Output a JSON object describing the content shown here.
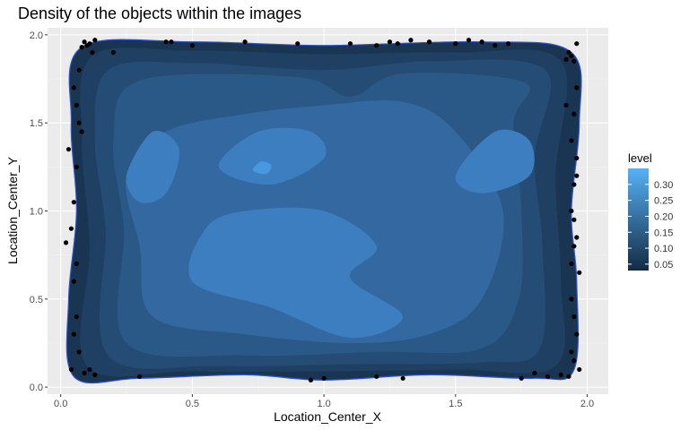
{
  "chart_data": {
    "type": "contour-density",
    "title": "Density of the objects within the images",
    "xlabel": "Location_Center_X",
    "ylabel": "Location_Center_Y",
    "xlim": [
      -0.05,
      2.08
    ],
    "ylim": [
      -0.04,
      2.04
    ],
    "x_ticks": [
      0.0,
      0.5,
      1.0,
      1.5,
      2.0
    ],
    "x_tick_labels": [
      "0.0",
      "0.5",
      "1.0",
      "1.5",
      "2.0"
    ],
    "y_ticks": [
      0.0,
      0.5,
      1.0,
      1.5,
      2.0
    ],
    "y_tick_labels": [
      "0.0",
      "0.5",
      "1.0",
      "1.5",
      "2.0"
    ],
    "grid": true,
    "legend": {
      "title": "level",
      "placement": "right",
      "levels": [
        0.05,
        0.1,
        0.15,
        0.2,
        0.25,
        0.3
      ],
      "labels": [
        "0.05",
        "0.10",
        "0.15",
        "0.20",
        "0.25",
        "0.30"
      ],
      "range": [
        0.03,
        0.35
      ],
      "color_low": "#132B43",
      "color_high": "#56B1F7"
    },
    "contour_levels": [
      {
        "level": 0.05,
        "color": "#1a3552",
        "points": [
          [
            0.05,
            0.06
          ],
          [
            0.3,
            0.05
          ],
          [
            0.7,
            0.07
          ],
          [
            1.0,
            0.04
          ],
          [
            1.4,
            0.07
          ],
          [
            1.8,
            0.05
          ],
          [
            1.95,
            0.1
          ],
          [
            1.96,
            0.6
          ],
          [
            1.94,
            1.0
          ],
          [
            1.97,
            1.5
          ],
          [
            1.94,
            1.9
          ],
          [
            1.6,
            1.96
          ],
          [
            1.0,
            1.94
          ],
          [
            0.5,
            1.96
          ],
          [
            0.08,
            1.93
          ],
          [
            0.04,
            1.5
          ],
          [
            0.06,
            1.0
          ],
          [
            0.03,
            0.5
          ]
        ]
      },
      {
        "level": 0.1,
        "color": "#1f4063",
        "points": [
          [
            0.1,
            0.12
          ],
          [
            0.5,
            0.09
          ],
          [
            1.0,
            0.09
          ],
          [
            1.5,
            0.1
          ],
          [
            1.88,
            0.12
          ],
          [
            1.9,
            0.6
          ],
          [
            1.88,
            1.2
          ],
          [
            1.9,
            1.85
          ],
          [
            1.5,
            1.9
          ],
          [
            1.0,
            1.89
          ],
          [
            0.5,
            1.91
          ],
          [
            0.12,
            1.88
          ],
          [
            0.08,
            1.4
          ],
          [
            0.11,
            0.8
          ]
        ]
      },
      {
        "level": 0.15,
        "color": "#254c75",
        "points": [
          [
            0.18,
            0.18
          ],
          [
            0.6,
            0.12
          ],
          [
            1.1,
            0.13
          ],
          [
            1.6,
            0.14
          ],
          [
            1.82,
            0.22
          ],
          [
            1.83,
            0.8
          ],
          [
            1.8,
            1.3
          ],
          [
            1.84,
            1.8
          ],
          [
            1.4,
            1.85
          ],
          [
            1.0,
            1.8
          ],
          [
            0.5,
            1.84
          ],
          [
            0.18,
            1.8
          ],
          [
            0.13,
            1.4
          ],
          [
            0.17,
            0.9
          ]
        ]
      },
      {
        "level": 0.2,
        "color": "#2b5987",
        "points": [
          [
            0.25,
            0.25
          ],
          [
            0.7,
            0.18
          ],
          [
            1.2,
            0.2
          ],
          [
            1.6,
            0.22
          ],
          [
            1.74,
            0.5
          ],
          [
            1.75,
            1.0
          ],
          [
            1.72,
            1.5
          ],
          [
            1.76,
            1.73
          ],
          [
            1.3,
            1.78
          ],
          [
            1.1,
            1.65
          ],
          [
            0.9,
            1.76
          ],
          [
            0.3,
            1.74
          ],
          [
            0.2,
            1.4
          ],
          [
            0.24,
            0.9
          ]
        ]
      },
      {
        "level": 0.25,
        "color": "#3368a0",
        "points": [
          [
            0.35,
            0.4
          ],
          [
            0.7,
            0.3
          ],
          [
            1.1,
            0.25
          ],
          [
            1.4,
            0.3
          ],
          [
            1.6,
            0.5
          ],
          [
            1.68,
            1.0
          ],
          [
            1.5,
            1.45
          ],
          [
            1.3,
            1.62
          ],
          [
            1.0,
            1.6
          ],
          [
            0.7,
            1.55
          ],
          [
            0.4,
            1.45
          ],
          [
            0.25,
            1.2
          ],
          [
            0.3,
            0.8
          ]
        ]
      },
      {
        "level": 0.3,
        "color": "#3c7ebf",
        "points": [
          [
            0.5,
            0.6
          ],
          [
            0.8,
            0.45
          ],
          [
            1.1,
            0.28
          ],
          [
            1.3,
            0.4
          ],
          [
            1.1,
            0.62
          ],
          [
            1.2,
            0.8
          ],
          [
            1.0,
            1.0
          ],
          [
            0.7,
            1.0
          ],
          [
            0.55,
            0.9
          ]
        ]
      },
      {
        "level": 0.3,
        "color": "#3c7ebf",
        "points": [
          [
            0.25,
            1.2
          ],
          [
            0.35,
            1.45
          ],
          [
            0.45,
            1.35
          ],
          [
            0.4,
            1.1
          ],
          [
            0.3,
            1.05
          ]
        ]
      },
      {
        "level": 0.3,
        "color": "#3c7ebf",
        "points": [
          [
            0.6,
            1.25
          ],
          [
            0.75,
            1.45
          ],
          [
            0.95,
            1.45
          ],
          [
            1.0,
            1.3
          ],
          [
            0.8,
            1.15
          ]
        ]
      },
      {
        "level": 0.3,
        "color": "#3c7ebf",
        "points": [
          [
            1.5,
            1.2
          ],
          [
            1.65,
            1.45
          ],
          [
            1.78,
            1.4
          ],
          [
            1.78,
            1.2
          ],
          [
            1.6,
            1.1
          ]
        ]
      },
      {
        "level": 0.33,
        "color": "#4898e0",
        "points": [
          [
            0.73,
            1.23
          ],
          [
            0.76,
            1.28
          ],
          [
            0.8,
            1.26
          ],
          [
            0.78,
            1.21
          ]
        ]
      }
    ],
    "scatter_points": [
      [
        0.02,
        0.82
      ],
      [
        0.04,
        0.1
      ],
      [
        0.05,
        0.6
      ],
      [
        0.06,
        1.25
      ],
      [
        0.07,
        1.5
      ],
      [
        0.08,
        1.93
      ],
      [
        0.09,
        1.96
      ],
      [
        0.1,
        1.94
      ],
      [
        0.11,
        1.95
      ],
      [
        0.12,
        1.9
      ],
      [
        0.13,
        1.97
      ],
      [
        0.05,
        1.7
      ],
      [
        0.07,
        1.8
      ],
      [
        0.09,
        0.08
      ],
      [
        0.11,
        0.1
      ],
      [
        0.13,
        0.07
      ],
      [
        0.2,
        1.9
      ],
      [
        0.3,
        0.06
      ],
      [
        0.4,
        1.96
      ],
      [
        0.42,
        1.96
      ],
      [
        0.5,
        1.94
      ],
      [
        0.7,
        1.96
      ],
      [
        0.9,
        1.95
      ],
      [
        0.95,
        0.04
      ],
      [
        1.0,
        0.05
      ],
      [
        1.1,
        1.95
      ],
      [
        1.2,
        0.06
      ],
      [
        1.2,
        1.94
      ],
      [
        1.25,
        1.96
      ],
      [
        1.28,
        1.95
      ],
      [
        1.3,
        0.05
      ],
      [
        1.33,
        1.97
      ],
      [
        1.4,
        1.96
      ],
      [
        1.5,
        1.95
      ],
      [
        1.55,
        1.97
      ],
      [
        1.6,
        1.96
      ],
      [
        1.65,
        1.94
      ],
      [
        1.7,
        1.95
      ],
      [
        1.75,
        0.05
      ],
      [
        1.8,
        0.08
      ],
      [
        1.85,
        0.06
      ],
      [
        1.9,
        0.07
      ],
      [
        1.92,
        1.86
      ],
      [
        1.93,
        1.9
      ],
      [
        1.94,
        1.88
      ],
      [
        1.95,
        1.85
      ],
      [
        1.96,
        1.7
      ],
      [
        1.95,
        1.55
      ],
      [
        1.96,
        1.3
      ],
      [
        1.95,
        1.15
      ],
      [
        1.94,
        1.0
      ],
      [
        1.96,
        0.85
      ],
      [
        1.95,
        0.8
      ],
      [
        1.97,
        0.65
      ],
      [
        1.94,
        0.5
      ],
      [
        1.95,
        0.4
      ],
      [
        1.96,
        0.3
      ],
      [
        1.94,
        0.2
      ],
      [
        1.95,
        0.15
      ],
      [
        1.97,
        0.1
      ],
      [
        1.93,
        0.06
      ],
      [
        1.96,
        1.95
      ],
      [
        1.92,
        1.6
      ],
      [
        1.94,
        1.4
      ],
      [
        1.96,
        1.2
      ],
      [
        1.95,
        0.95
      ],
      [
        1.94,
        0.7
      ],
      [
        0.04,
        0.9
      ],
      [
        0.05,
        1.05
      ],
      [
        0.06,
        0.4
      ],
      [
        0.05,
        0.3
      ],
      [
        0.07,
        0.2
      ],
      [
        0.06,
        1.6
      ],
      [
        0.08,
        1.45
      ],
      [
        0.03,
        1.35
      ],
      [
        0.06,
        0.7
      ]
    ]
  }
}
